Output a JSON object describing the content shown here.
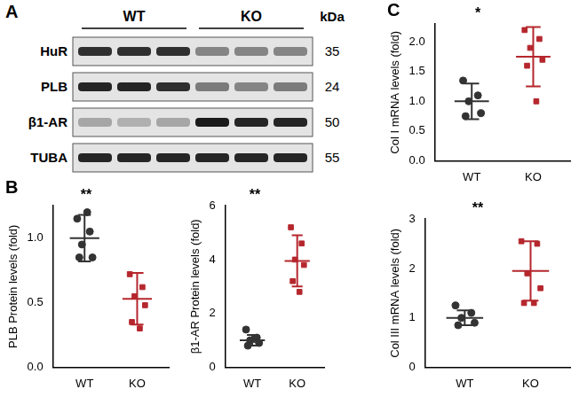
{
  "panel_labels": [
    "A",
    "B",
    "C"
  ],
  "blot": {
    "groups": [
      {
        "label": "WT",
        "lanes": 3
      },
      {
        "label": "KO",
        "lanes": 3
      }
    ],
    "unit": "kDa",
    "rows": [
      {
        "label": "HuR",
        "kda": 35,
        "intensity": [
          0.85,
          0.85,
          0.85,
          0.45,
          0.45,
          0.45
        ]
      },
      {
        "label": "PLB",
        "kda": 24,
        "intensity": [
          0.9,
          0.9,
          0.85,
          0.5,
          0.45,
          0.5
        ]
      },
      {
        "label": "β1-AR",
        "kda": 50,
        "intensity": [
          0.3,
          0.25,
          0.3,
          0.95,
          0.9,
          0.9
        ]
      },
      {
        "label": "TUBA",
        "kda": 55,
        "intensity": [
          0.9,
          0.9,
          0.9,
          0.9,
          0.9,
          0.9
        ]
      }
    ]
  },
  "chart_data": [
    {
      "type": "scatter",
      "panel": "B",
      "y_label": "PLB Protein levels (fold)",
      "annotation": "**",
      "categories": [
        "WT",
        "KO"
      ],
      "values": [
        [
          1.15,
          1.05,
          0.95,
          0.85,
          0.85,
          1.2
        ],
        [
          0.72,
          0.62,
          0.55,
          0.48,
          0.35,
          0.3
        ]
      ],
      "means": [
        1.0,
        0.53
      ],
      "sd": [
        0.18,
        0.2
      ],
      "colors": [
        "#333333",
        "#b5272d"
      ],
      "marker": [
        "circle",
        "square"
      ],
      "ylim": [
        0,
        1.25
      ],
      "yticks": [
        {
          "value": 0,
          "label": "0.0"
        },
        {
          "value": 0.5,
          "label": "0.5"
        },
        {
          "value": 1,
          "label": "1.0"
        }
      ],
      "grid": false
    },
    {
      "type": "scatter",
      "panel": "B",
      "y_label": "β1-AR Protein levels (fold)",
      "annotation": "**",
      "categories": [
        "WT",
        "KO"
      ],
      "values": [
        [
          1.4,
          1.1,
          1.0,
          0.9,
          0.8,
          1.05
        ],
        [
          5.2,
          4.6,
          4.0,
          3.8,
          3.2,
          2.8
        ]
      ],
      "means": [
        1.0,
        3.95
      ],
      "sd": [
        0.2,
        0.95
      ],
      "colors": [
        "#333333",
        "#b5272d"
      ],
      "marker": [
        "circle",
        "square"
      ],
      "ylim": [
        0,
        6
      ],
      "yticks": [
        0,
        2,
        4,
        6
      ],
      "grid": false
    },
    {
      "type": "scatter",
      "panel": "C",
      "y_label": "Col I mRNA levels (fold)",
      "annotation": "*",
      "categories": [
        "WT",
        "KO"
      ],
      "values": [
        [
          1.35,
          1.1,
          1.0,
          0.8,
          0.75
        ],
        [
          2.2,
          2.05,
          1.9,
          1.7,
          1.6,
          1.0
        ]
      ],
      "means": [
        1.0,
        1.75
      ],
      "sd": [
        0.3,
        0.5
      ],
      "colors": [
        "#333333",
        "#b5272d"
      ],
      "marker": [
        "circle",
        "square"
      ],
      "ylim": [
        0,
        2.3
      ],
      "yticks": [
        {
          "value": 0,
          "label": "0.0"
        },
        {
          "value": 0.5,
          "label": "0.5"
        },
        {
          "value": 1,
          "label": "1.0"
        },
        {
          "value": 1.5,
          "label": "1.5"
        },
        {
          "value": 2,
          "label": "2.0"
        }
      ],
      "grid": false
    },
    {
      "type": "scatter",
      "panel": "C",
      "y_label": "Col III mRNA levels (fold)",
      "annotation": "**",
      "categories": [
        "WT",
        "KO"
      ],
      "values": [
        [
          1.25,
          1.1,
          1.0,
          0.9,
          0.85
        ],
        [
          2.55,
          2.5,
          1.9,
          1.6,
          1.3,
          1.3
        ]
      ],
      "means": [
        1.0,
        1.95
      ],
      "sd": [
        0.15,
        0.6
      ],
      "colors": [
        "#333333",
        "#b5272d"
      ],
      "marker": [
        "circle",
        "square"
      ],
      "ylim": [
        0,
        3
      ],
      "yticks": [
        0,
        1,
        2,
        3
      ],
      "grid": false
    }
  ]
}
